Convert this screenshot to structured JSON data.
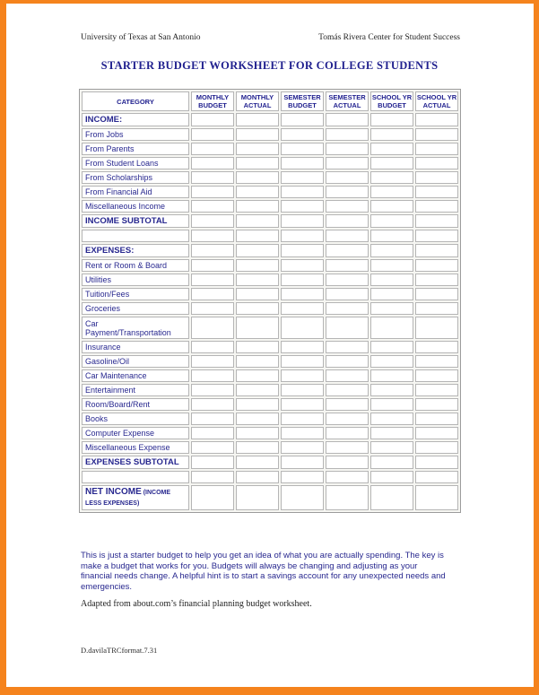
{
  "colors": {
    "accent_orange": "#f5831d",
    "navy_text": "#1f1f8e",
    "cell_border_gray": "#b5b5b5"
  },
  "header": {
    "left": "University of Texas at San Antonio",
    "right": "Tomás Rivera Center for Student Success"
  },
  "title": "STARTER BUDGET WORKSHEET FOR COLLEGE STUDENTS",
  "table": {
    "columns": [
      [
        "CATEGORY"
      ],
      [
        "MONTHLY",
        "BUDGET"
      ],
      [
        "MONTHLY",
        "ACTUAL"
      ],
      [
        "SEMESTER",
        "BUDGET"
      ],
      [
        "SEMESTER",
        "ACTUAL"
      ],
      [
        "SCHOOL YR",
        "BUDGET"
      ],
      [
        "SCHOOL YR",
        "ACTUAL"
      ]
    ],
    "value_columns_count": 6,
    "rows": [
      {
        "label": "INCOME:",
        "style": "section"
      },
      {
        "label": "From Jobs",
        "style": "item"
      },
      {
        "label": "From Parents",
        "style": "item"
      },
      {
        "label": "From Student Loans",
        "style": "item"
      },
      {
        "label": "From Scholarships",
        "style": "item"
      },
      {
        "label": "From Financial Aid",
        "style": "item"
      },
      {
        "label": "Miscellaneous Income",
        "style": "item"
      },
      {
        "label": "INCOME SUBTOTAL",
        "style": "section"
      },
      {
        "label": "",
        "style": "blank"
      },
      {
        "label": "EXPENSES:",
        "style": "section"
      },
      {
        "label": "Rent or Room & Board",
        "style": "item"
      },
      {
        "label": "Utilities",
        "style": "item"
      },
      {
        "label": "Tuition/Fees",
        "style": "item"
      },
      {
        "label": "Groceries",
        "style": "item"
      },
      {
        "label": "Car Payment/Transportation",
        "style": "item",
        "tall": true
      },
      {
        "label": "Insurance",
        "style": "item"
      },
      {
        "label": "Gasoline/Oil",
        "style": "item"
      },
      {
        "label": "Car Maintenance",
        "style": "item"
      },
      {
        "label": "Entertainment",
        "style": "item"
      },
      {
        "label": "Room/Board/Rent",
        "style": "item"
      },
      {
        "label": "Books",
        "style": "item"
      },
      {
        "label": "Computer Expense",
        "style": "item"
      },
      {
        "label": "Miscellaneous Expense",
        "style": "item"
      },
      {
        "label": "EXPENSES SUBTOTAL",
        "style": "section"
      },
      {
        "label": "",
        "style": "blank"
      },
      {
        "label": "NET INCOME",
        "suffix": "(INCOME LESS EXPENSES)",
        "style": "net",
        "tall": true
      }
    ],
    "cell_values": ""
  },
  "notes": {
    "lines": [
      "This is just a starter budget to help you get an idea of what you are actually spending. The key is",
      "make a budget that works for you. Budgets will always be changing and adjusting as your",
      "financial needs change. A helpful hint is to start a savings account for any unexpected needs and",
      "emergencies."
    ]
  },
  "credit": "Adapted from about.com’s financial planning budget worksheet.",
  "footer_code": "D.davilaTRCformat.7.31"
}
